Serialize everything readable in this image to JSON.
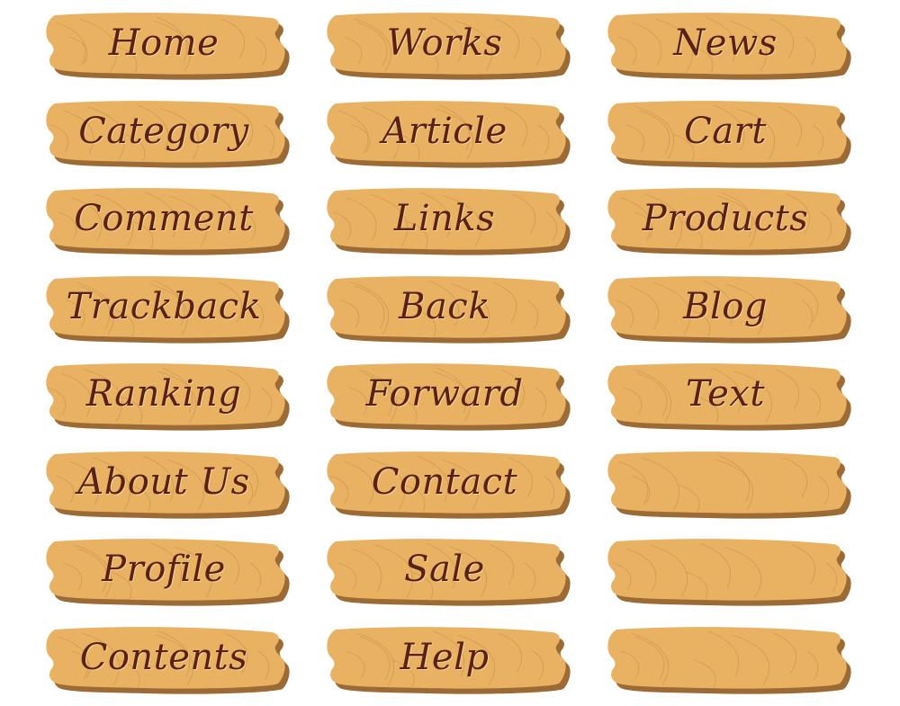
{
  "colors": {
    "wood": "#e9b262",
    "wood_shadow": "#9c6a34",
    "grain": "#c8924e",
    "text": "#5a2216",
    "background": "#ffffff"
  },
  "icons": {
    "sign_shape": "wooden-plank-icon"
  },
  "signs": [
    {
      "label": "Home"
    },
    {
      "label": "Works"
    },
    {
      "label": "News"
    },
    {
      "label": "Category"
    },
    {
      "label": "Article"
    },
    {
      "label": "Cart"
    },
    {
      "label": "Comment"
    },
    {
      "label": "Links"
    },
    {
      "label": "Products"
    },
    {
      "label": "Trackback"
    },
    {
      "label": "Back"
    },
    {
      "label": "Blog"
    },
    {
      "label": "Ranking"
    },
    {
      "label": "Forward"
    },
    {
      "label": "Text"
    },
    {
      "label": "About Us"
    },
    {
      "label": "Contact"
    },
    {
      "label": ""
    },
    {
      "label": "Profile"
    },
    {
      "label": "Sale"
    },
    {
      "label": ""
    },
    {
      "label": "Contents"
    },
    {
      "label": "Help"
    },
    {
      "label": ""
    }
  ]
}
